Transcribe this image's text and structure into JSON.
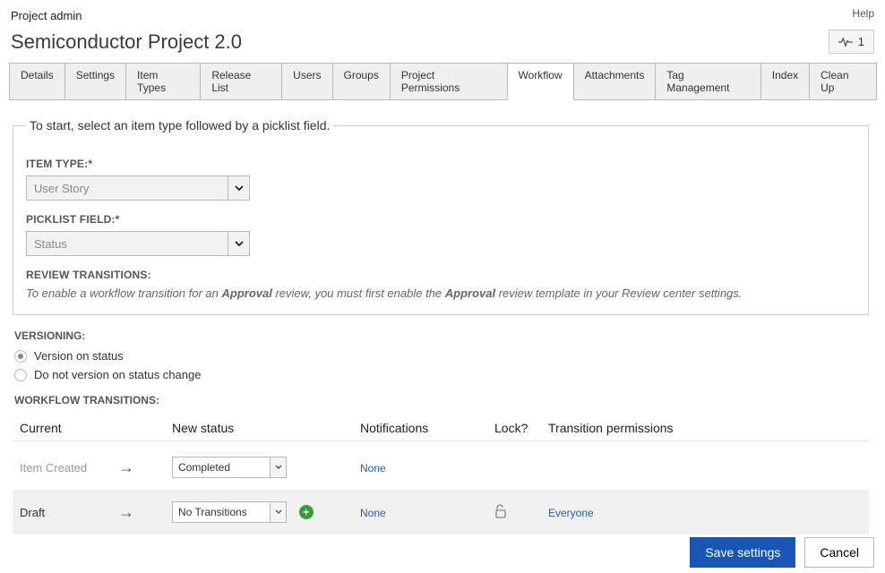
{
  "header": {
    "breadcrumb": "Project admin",
    "help": "Help",
    "title": "Semiconductor Project 2.0",
    "activity_count": "1"
  },
  "tabs": [
    {
      "label": "Details"
    },
    {
      "label": "Settings"
    },
    {
      "label": "Item Types"
    },
    {
      "label": "Release List"
    },
    {
      "label": "Users"
    },
    {
      "label": "Groups"
    },
    {
      "label": "Project Permissions"
    },
    {
      "label": "Workflow",
      "active": true
    },
    {
      "label": "Attachments"
    },
    {
      "label": "Tag Management"
    },
    {
      "label": "Index"
    },
    {
      "label": "Clean Up"
    }
  ],
  "startbox": {
    "legend": "To start, select an item type followed by a picklist field.",
    "item_type_label": "ITEM TYPE:",
    "item_type_value": "User Story",
    "picklist_label": "PICKLIST FIELD:",
    "picklist_value": "Status",
    "review_label": "REVIEW TRANSITIONS:",
    "review_note_pre": "To enable a workflow transition for an ",
    "review_note_bold1": "Approval",
    "review_note_mid": " review, you must first enable the ",
    "review_note_bold2": "Approval",
    "review_note_post": " review template in your Review center settings."
  },
  "versioning": {
    "label": "VERSIONING:",
    "opt1": "Version on status",
    "opt2": "Do not version on status change"
  },
  "workflow": {
    "label": "WORKFLOW TRANSITIONS:",
    "headers": {
      "current": "Current",
      "new": "New status",
      "notif": "Notifications",
      "lock": "Lock?",
      "perm": "Transition permissions"
    },
    "rows": [
      {
        "current": "Item Created",
        "new_status": "Completed",
        "notifications": "None",
        "lock": "",
        "perm": ""
      },
      {
        "current": "Draft",
        "new_status": "No Transitions",
        "notifications": "None",
        "lock": "unlocked",
        "perm": "Everyone"
      }
    ]
  },
  "footer": {
    "save": "Save settings",
    "cancel": "Cancel"
  },
  "colors": {
    "primary": "#1955b5",
    "link": "#2459c4",
    "add_green": "#3a9a3a"
  }
}
